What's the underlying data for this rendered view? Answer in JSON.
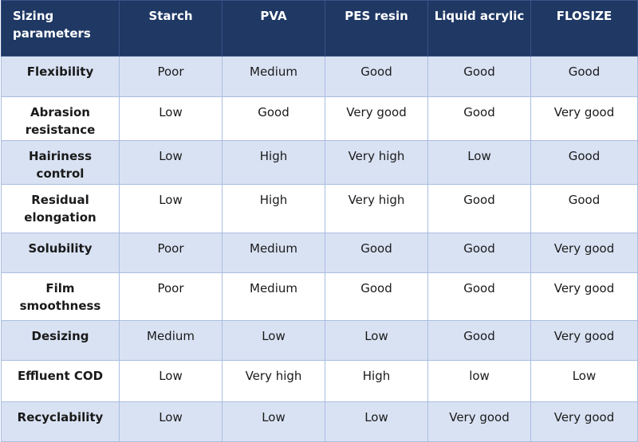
{
  "table": {
    "headers": [
      "Sizing\nparameters",
      "Starch",
      "PVA",
      "PES resin",
      "Liquid acrylic",
      "FLOSIZE"
    ],
    "rows": [
      {
        "param": "Flexibility",
        "values": [
          "Poor",
          "Medium",
          "Good",
          "Good",
          "Good"
        ]
      },
      {
        "param": "Abrasion resistance",
        "values": [
          "Low",
          "Good",
          "Very good",
          "Good",
          "Very good"
        ]
      },
      {
        "param": "Hairiness control",
        "values": [
          "Low",
          "High",
          "Very high",
          "Low",
          "Good"
        ]
      },
      {
        "param": "Residual elongation",
        "values": [
          "Low",
          "High",
          "Very high",
          "Good",
          "Good"
        ]
      },
      {
        "param": "Solubility",
        "values": [
          "Poor",
          "Medium",
          "Good",
          "Good",
          "Very good"
        ]
      },
      {
        "param": "Film smoothness",
        "values": [
          "Poor",
          "Medium",
          "Good",
          "Good",
          "Very good"
        ]
      },
      {
        "param": "Desizing",
        "values": [
          "Medium",
          "Low",
          "Low",
          "Good",
          "Very good"
        ]
      },
      {
        "param": "Effluent COD",
        "values": [
          "Low",
          "Very high",
          "High",
          "low",
          "Low"
        ]
      },
      {
        "param": "Recyclability",
        "values": [
          "Low",
          "Low",
          "Low",
          "Very good",
          "Very good"
        ]
      }
    ]
  },
  "colors": {
    "header_bg": "#1f3864",
    "shaded_row_bg": "#d9e2f3",
    "plain_row_bg": "#ffffff",
    "border": "#a9bde0"
  }
}
